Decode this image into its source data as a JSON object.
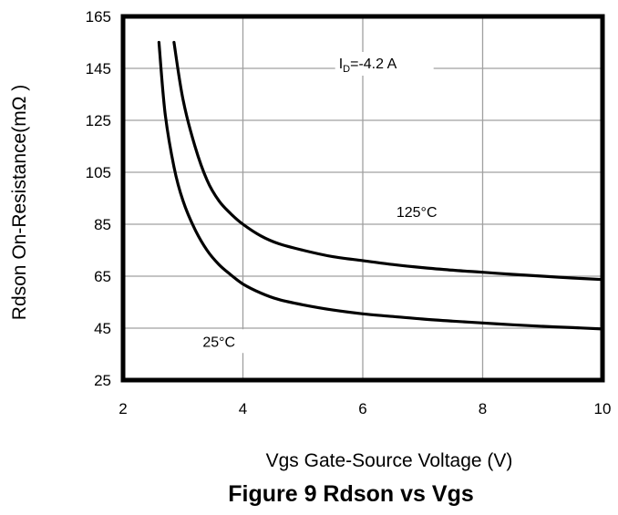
{
  "chart_data": {
    "type": "line",
    "title": "Figure 9 Rdson vs Vgs",
    "xlabel": "Vgs Gate-Source Voltage (V)",
    "ylabel": "Rdson On-Resistance(mΩ )",
    "xlim": [
      2,
      10
    ],
    "ylim": [
      25,
      165
    ],
    "x_ticks": [
      "2",
      "4",
      "6",
      "8",
      "10"
    ],
    "y_ticks": [
      "165",
      "145",
      "125",
      "105",
      "85",
      "65",
      "45",
      "25"
    ],
    "grid": true,
    "annotation": {
      "text_main": "I",
      "text_sub": "D",
      "text_rest": "=-4.2 A",
      "x": 5.6,
      "y": 145
    },
    "series": [
      {
        "name": "125°C",
        "label_x": 6.9,
        "label_y": 90,
        "x": [
          2.85,
          3.0,
          3.2,
          3.4,
          3.6,
          3.8,
          4.0,
          4.3,
          4.6,
          5.0,
          5.5,
          6.0,
          6.5,
          7.0,
          7.5,
          8.0,
          8.5,
          9.0,
          9.5,
          10.0
        ],
        "y": [
          155,
          133,
          115,
          102,
          94,
          89,
          85,
          80.5,
          77.5,
          75,
          72.5,
          71,
          69.5,
          68.3,
          67.3,
          66.5,
          65.7,
          65,
          64.3,
          63.7
        ]
      },
      {
        "name": "25°C",
        "label_x": 3.6,
        "label_y": 40,
        "x": [
          2.6,
          2.7,
          2.85,
          3.0,
          3.2,
          3.4,
          3.6,
          3.8,
          4.0,
          4.3,
          4.6,
          5.0,
          5.5,
          6.0,
          6.5,
          7.0,
          7.5,
          8.0,
          8.5,
          9.0,
          9.5,
          10.0
        ],
        "y": [
          155,
          128,
          107,
          94,
          83,
          75,
          69.5,
          65.5,
          62,
          58.5,
          56,
          54,
          52,
          50.5,
          49.5,
          48.5,
          47.7,
          47,
          46.3,
          45.7,
          45.2,
          44.7
        ]
      }
    ]
  }
}
